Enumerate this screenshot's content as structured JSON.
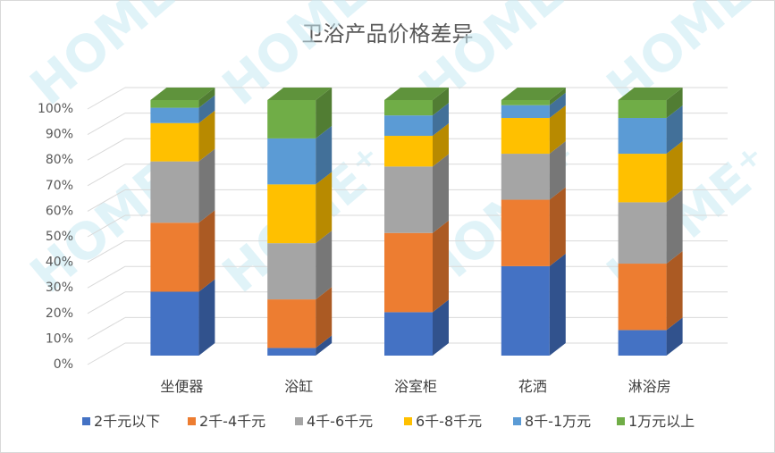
{
  "chart_data": {
    "type": "bar",
    "stacked": true,
    "three_d": true,
    "title": "卫浴产品价格差异",
    "categories": [
      "坐便器",
      "浴缸",
      "浴室柜",
      "花洒",
      "淋浴房"
    ],
    "yticks": [
      "0%",
      "10%",
      "20%",
      "30%",
      "40%",
      "50%",
      "60%",
      "70%",
      "80%",
      "90%",
      "100%"
    ],
    "ylim": [
      0,
      100
    ],
    "grid": true,
    "legend_position": "bottom",
    "series": [
      {
        "name": "2千元以下",
        "color": "#4472C4",
        "values": [
          25,
          3,
          17,
          35,
          10
        ]
      },
      {
        "name": "2千-4千元",
        "color": "#ED7D31",
        "values": [
          27,
          19,
          31,
          26,
          26
        ]
      },
      {
        "name": "4千-6千元",
        "color": "#A5A5A5",
        "values": [
          24,
          22,
          26,
          18,
          24
        ]
      },
      {
        "name": "6千-8千元",
        "color": "#FFC000",
        "values": [
          15,
          23,
          12,
          14,
          19
        ]
      },
      {
        "name": "8千-1万元",
        "color": "#5B9BD5",
        "values": [
          6,
          18,
          8,
          5,
          14
        ]
      },
      {
        "name": "1万元以上",
        "color": "#70AD47",
        "values": [
          3,
          15,
          6,
          2,
          7
        ]
      }
    ]
  },
  "watermark": {
    "text": "HOME⁺"
  }
}
